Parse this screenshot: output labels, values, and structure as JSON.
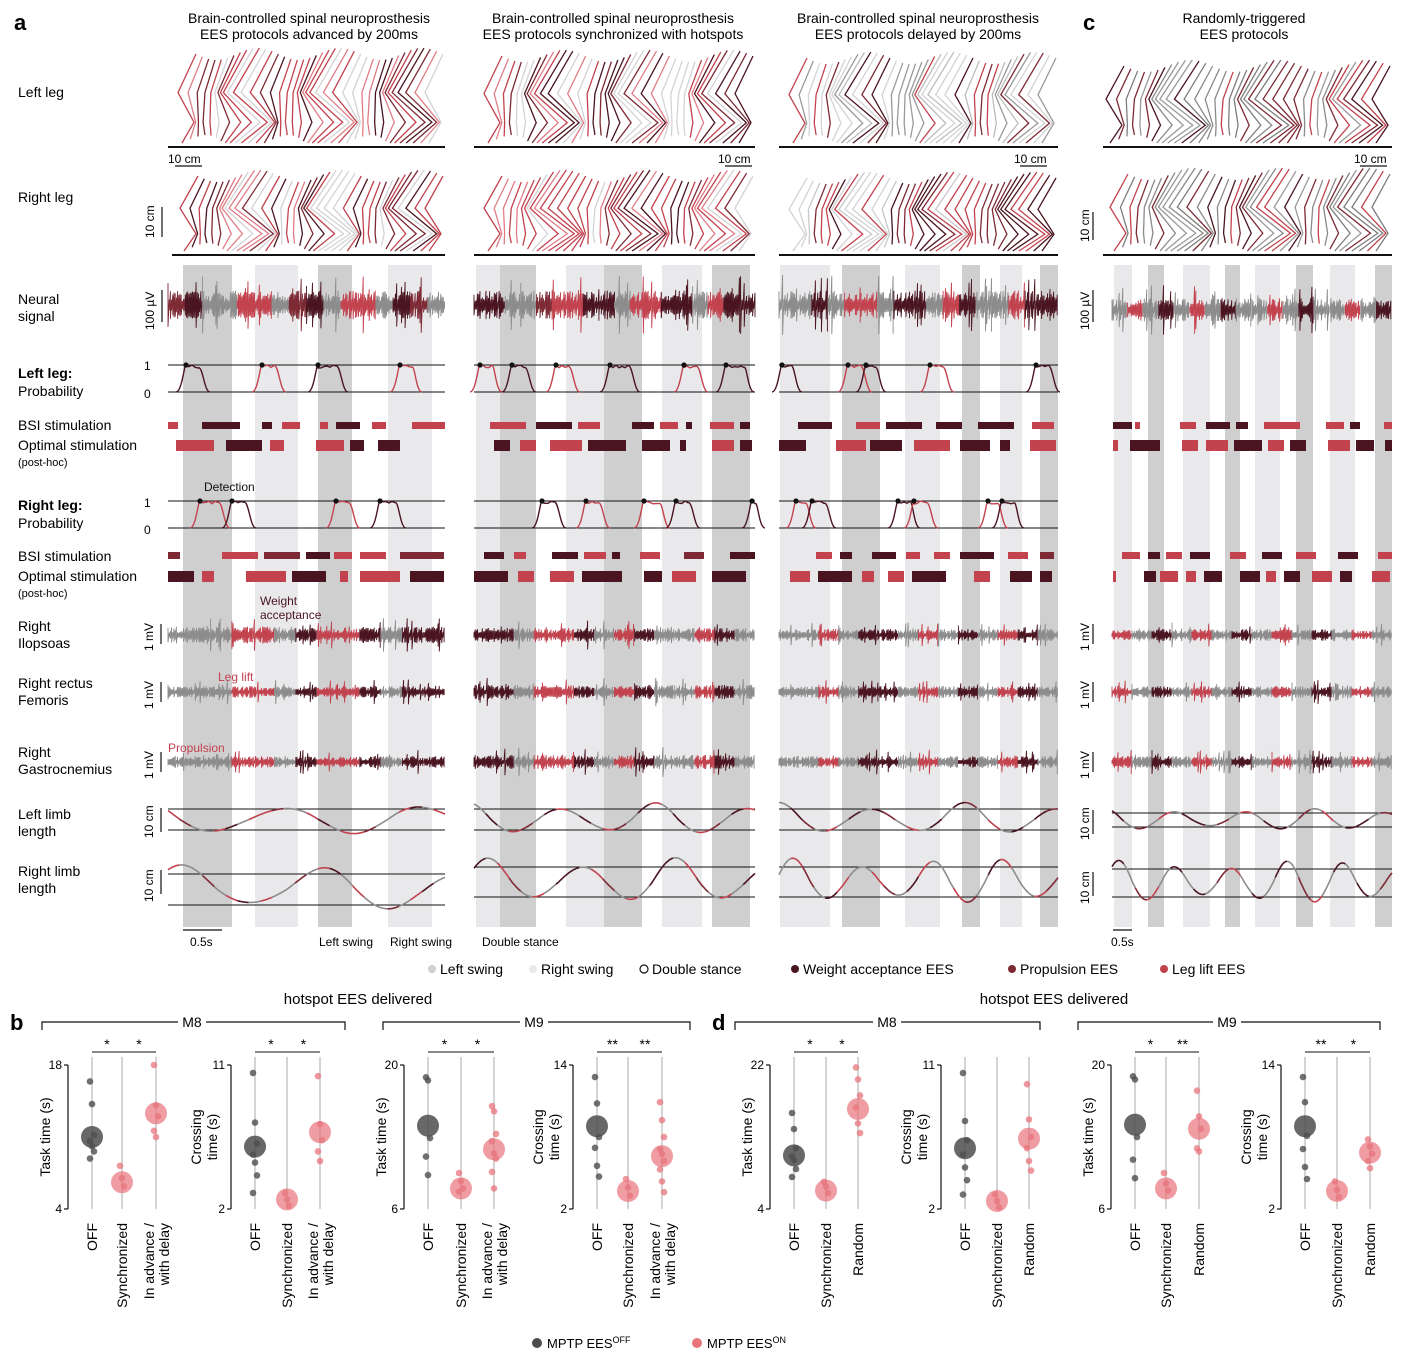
{
  "colors": {
    "weight_acceptance": "#4a1520",
    "propulsion": "#7d2a35",
    "leg_lift": "#c2424e",
    "left_swing_shade": "#cfcfcf",
    "right_swing_shade": "#e9e9eb",
    "signal_grey": "#8c8c8c",
    "mptp_off": "#4d4d4d",
    "mptp_on": "#e8747c",
    "stick_light": "#d3d3d5"
  },
  "panels": {
    "a": "a",
    "b": "b",
    "c": "c",
    "d": "d"
  },
  "columns": [
    {
      "line1": "Brain-controlled spinal neuroprosthesis",
      "line2": "EES protocols advanced by 200ms"
    },
    {
      "line1": "Brain-controlled spinal neuroprosthesis",
      "line2": "EES protocols synchronized with hotspots"
    },
    {
      "line1": "Brain-controlled spinal neuroprosthesis",
      "line2": "EES protocols delayed by 200ms"
    },
    {
      "line1": "Randomly-triggered",
      "line2": "EES protocols"
    }
  ],
  "row_labels": {
    "left_leg": "Left leg",
    "right_leg": "Right leg",
    "neural_1": "Neural",
    "neural_2": "signal",
    "left_prob_bold": "Left leg:",
    "prob": "Probability",
    "bsi": "BSI stimulation",
    "optimal": "Optimal stimulation",
    "posthoc": "(post-hoc)",
    "right_prob_bold": "Right leg:",
    "iliopsoas_1": "Right",
    "iliopsoas_2": "Ilopsoas",
    "rectus_1": "Right rectus",
    "rectus_2": "Femoris",
    "gastro_1": "Right",
    "gastro_2": "Gastrocnemius",
    "left_limb_1": "Left limb",
    "left_limb_2": "length",
    "right_limb_1": "Right limb",
    "right_limb_2": "length"
  },
  "scales": {
    "cm10": "10 cm",
    "uv100": "100 µV",
    "mv1": "1 mV",
    "s05": "0.5s",
    "one": "1",
    "zero": "0"
  },
  "annotations": {
    "detection": "Detection",
    "weight_acceptance_1": "Weight",
    "weight_acceptance_2": "acceptance",
    "leg_lift": "Leg lift",
    "propulsion": "Propulsion",
    "left_swing": "Left swing",
    "right_swing": "Right swing",
    "double_stance": "Double stance"
  },
  "legend_top": [
    {
      "label": "Left swing",
      "color": "#cfcfcf",
      "type": "swatch"
    },
    {
      "label": "Right swing",
      "color": "#e9e9eb",
      "type": "swatch"
    },
    {
      "label": "Double stance",
      "color": "#ffffff",
      "type": "open"
    },
    {
      "label": "Weight acceptance EES",
      "color": "#4a1520",
      "type": "swatch"
    },
    {
      "label": "Propulsion EES",
      "color": "#7d2a35",
      "type": "swatch"
    },
    {
      "label": "Leg lift EES",
      "color": "#c2424e",
      "type": "swatch"
    }
  ],
  "legend_bottom": {
    "off_label": "MPTP EES",
    "off_sup": "OFF",
    "on_label": "MPTP EES",
    "on_sup": "ON"
  },
  "section_titles": {
    "b": "hotspot EES delivered",
    "d": "hotspot EES delivered"
  },
  "chart_data": [
    {
      "panel": "b",
      "subject": "M8",
      "type": "scatter",
      "ylabel": "Task time (s)",
      "ylim": [
        4,
        18
      ],
      "yticks": [
        "4",
        "18"
      ],
      "categories": [
        "OFF",
        "Synchronized",
        "In advance / with delay"
      ],
      "means": [
        11.0,
        6.6,
        13.3
      ],
      "points": [
        [
          16.4,
          14.2,
          11.2,
          10.6,
          10.1,
          9.6,
          8.9
        ],
        [
          8.2,
          7.0,
          6.2
        ],
        [
          18.0,
          14.1,
          13.0,
          11.6,
          11.0
        ]
      ],
      "significance": [
        {
          "from": 0,
          "to": 1,
          "label": "*"
        },
        {
          "from": 1,
          "to": 2,
          "label": "*"
        }
      ]
    },
    {
      "panel": "b",
      "subject": "M8",
      "type": "scatter",
      "ylabel": "Crossing time (s)",
      "ylim": [
        2,
        11
      ],
      "yticks": [
        "2",
        "11"
      ],
      "categories": [
        "OFF",
        "Synchronized",
        "In advance / with delay"
      ],
      "means": [
        5.9,
        2.6,
        6.8
      ],
      "points": [
        [
          10.5,
          7.4,
          6.1,
          5.4,
          4.9,
          4.1,
          3.0
        ],
        [
          3.0,
          2.6,
          2.2
        ],
        [
          10.3,
          7.3,
          6.3,
          5.6,
          5.0
        ]
      ],
      "significance": [
        {
          "from": 0,
          "to": 1,
          "label": "*"
        },
        {
          "from": 1,
          "to": 2,
          "label": "*"
        }
      ]
    },
    {
      "panel": "b",
      "subject": "M9",
      "type": "scatter",
      "ylabel": "Task time (s)",
      "ylim": [
        6,
        20
      ],
      "yticks": [
        "6",
        "20"
      ],
      "categories": [
        "OFF",
        "Synchronized",
        "In advance / with delay"
      ],
      "means": [
        14.1,
        8.0,
        11.8
      ],
      "points": [
        [
          18.8,
          18.5,
          12.9,
          11.1,
          9.3
        ],
        [
          9.5,
          8.7,
          8.0,
          7.7
        ],
        [
          16.0,
          15.5,
          13.3,
          12.6,
          11.4,
          10.9,
          9.6,
          8.0
        ]
      ],
      "significance": [
        {
          "from": 0,
          "to": 1,
          "label": "*"
        },
        {
          "from": 1,
          "to": 2,
          "label": "*"
        }
      ]
    },
    {
      "panel": "b",
      "subject": "M9",
      "type": "scatter",
      "ylabel": "Crossing time (s)",
      "ylim": [
        2,
        14
      ],
      "yticks": [
        "2",
        "14"
      ],
      "categories": [
        "OFF",
        "Synchronized",
        "In advance / with delay"
      ],
      "means": [
        8.9,
        3.5,
        6.4
      ],
      "points": [
        [
          13.0,
          10.8,
          8.0,
          7.1,
          5.6,
          4.7
        ],
        [
          4.5,
          3.8,
          3.1
        ],
        [
          10.9,
          9.4,
          8.0,
          7.0,
          6.6,
          6.0,
          5.3,
          4.3,
          3.4
        ]
      ],
      "significance": [
        {
          "from": 0,
          "to": 1,
          "label": "**"
        },
        {
          "from": 1,
          "to": 2,
          "label": "**"
        }
      ]
    },
    {
      "panel": "d",
      "subject": "M8",
      "type": "scatter",
      "ylabel": "Task time (s)",
      "ylim": [
        4,
        22
      ],
      "yticks": [
        "4",
        "22"
      ],
      "categories": [
        "OFF",
        "Synchronized",
        "Random"
      ],
      "means": [
        10.7,
        6.3,
        16.5
      ],
      "points": [
        [
          16.0,
          14.0,
          11.6,
          10.6,
          10.1,
          9.0,
          8.0
        ],
        [
          7.4,
          6.8,
          6.0
        ],
        [
          21.7,
          20.2,
          18.2,
          16.7,
          14.7,
          13.5
        ]
      ],
      "significance": [
        {
          "from": 0,
          "to": 1,
          "label": "*"
        },
        {
          "from": 1,
          "to": 2,
          "label": "*"
        }
      ]
    },
    {
      "panel": "d",
      "subject": "M8",
      "type": "scatter",
      "ylabel": "Crossing time (s)",
      "ylim": [
        2,
        11
      ],
      "yticks": [
        "2",
        "11"
      ],
      "categories": [
        "OFF",
        "Synchronized",
        "Random"
      ],
      "means": [
        5.8,
        2.5,
        6.4
      ],
      "points": [
        [
          10.5,
          7.5,
          6.3,
          5.4,
          4.6,
          3.8,
          2.9
        ],
        [
          2.9,
          2.5,
          2.1
        ],
        [
          9.8,
          7.6,
          6.5,
          5.8,
          5.0,
          4.4
        ]
      ],
      "significance": []
    },
    {
      "panel": "d",
      "subject": "M9",
      "type": "scatter",
      "ylabel": "Task time (s)",
      "ylim": [
        6,
        20
      ],
      "yticks": [
        "6",
        "20"
      ],
      "categories": [
        "OFF",
        "Synchronized",
        "Random"
      ],
      "means": [
        14.2,
        8.0,
        13.8
      ],
      "points": [
        [
          18.9,
          18.6,
          13.0,
          10.8,
          9.0
        ],
        [
          9.5,
          8.5,
          7.8
        ],
        [
          17.5,
          15.0,
          13.8,
          11.9,
          11.6
        ]
      ],
      "significance": [
        {
          "from": 0,
          "to": 1,
          "label": "*"
        },
        {
          "from": 1,
          "to": 2,
          "label": "**"
        }
      ]
    },
    {
      "panel": "d",
      "subject": "M9",
      "type": "scatter",
      "ylabel": "Crossing time (s)",
      "ylim": [
        2,
        14
      ],
      "yticks": [
        "2",
        "14"
      ],
      "categories": [
        "OFF",
        "Synchronized",
        "Random"
      ],
      "means": [
        8.9,
        3.5,
        6.7
      ],
      "points": [
        [
          13.0,
          10.9,
          8.1,
          7.0,
          5.5,
          4.5
        ],
        [
          4.3,
          3.6,
          3.0
        ],
        [
          7.8,
          7.2,
          6.6,
          6.0,
          5.4
        ]
      ],
      "significance": [
        {
          "from": 0,
          "to": 1,
          "label": "**"
        },
        {
          "from": 1,
          "to": 2,
          "label": "*"
        }
      ]
    }
  ]
}
